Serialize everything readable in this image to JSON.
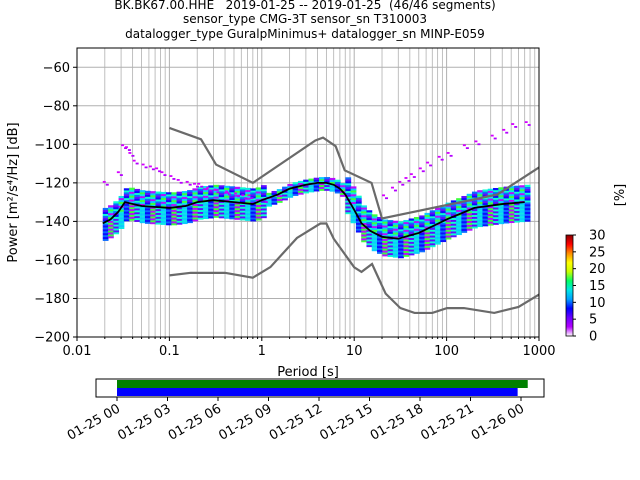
{
  "header": {
    "line1": "BK.BK67.00.HHE   2019-01-25 -- 2019-01-25  (46/46 segments)",
    "line2": "sensor_type CMG-3T sensor_sn T310003",
    "line3": "datalogger_type GuralpMinimus+ datalogger_sn MINP-E059"
  },
  "chart_data": [
    {
      "type": "heatmap",
      "xlabel": "Period [s]",
      "ylabel": "Power [m²/s⁴/Hz] [dB]",
      "xscale": "log",
      "xlim": [
        0.01,
        1000
      ],
      "ylim": [
        -200,
        -50
      ],
      "xticks": [
        0.01,
        0.1,
        1,
        10,
        100,
        1000
      ],
      "xtick_labels": [
        "0.01",
        "0.1",
        "1",
        "10",
        "100",
        "1000"
      ],
      "yticks": [
        -200,
        -180,
        -160,
        -140,
        -120,
        -100,
        -80,
        -60
      ],
      "ytick_labels": [
        "−200",
        "−180",
        "−160",
        "−140",
        "−120",
        "−100",
        "−80",
        "−60"
      ],
      "grid": true,
      "colorbar": {
        "label": "[%]",
        "range": [
          0,
          30
        ],
        "ticks": [
          "0",
          "5",
          "10",
          "15",
          "20",
          "25",
          "30"
        ],
        "colors": [
          "#ffffff",
          "#b400ff",
          "#6a00ff",
          "#0000ff",
          "#00a0ff",
          "#00e6e6",
          "#00ff66",
          "#c8ff00",
          "#ffff00",
          "#ff8c00",
          "#ff0000",
          "#8b0000"
        ]
      },
      "mean_curve": {
        "x": [
          0.019,
          0.023,
          0.028,
          0.033,
          0.05,
          0.1,
          0.15,
          0.2,
          0.3,
          0.5,
          0.8,
          1.0,
          1.5,
          2.0,
          3.0,
          4.0,
          5.0,
          6.0,
          7.0,
          8.0,
          10.0,
          12.0,
          15.0,
          20.0,
          30.0,
          50.0,
          100.0,
          200.0,
          400.0,
          700.0
        ],
        "y": [
          -141,
          -139,
          -135,
          -130,
          -132,
          -133,
          -132,
          -130,
          -129,
          -130,
          -131,
          -129,
          -126,
          -123,
          -121,
          -120,
          -120,
          -121,
          -123,
          -126,
          -134,
          -141,
          -145,
          -148,
          -149,
          -146,
          -139,
          -133,
          -131,
          -130
        ]
      },
      "noise_models": [
        {
          "x": [
            0.1,
            0.22,
            0.32,
            0.8,
            3.8,
            4.6,
            6.3,
            7.9,
            15.4,
            20,
            354.8,
            1000
          ],
          "y": [
            -91.5,
            -97.4,
            -110.5,
            -120,
            -98,
            -96.5,
            -101,
            -113.5,
            -120,
            -138.5,
            -126,
            -112
          ]
        },
        {
          "x": [
            0.1,
            0.17,
            0.4,
            0.8,
            1.24,
            2.4,
            4.3,
            5.0,
            6.0,
            10,
            12,
            15.6,
            21.9,
            31.6,
            45,
            70,
            101,
            154,
            328,
            600,
            1000
          ],
          "y": [
            -168,
            -166.7,
            -166.7,
            -169.2,
            -163.7,
            -148.6,
            -141.1,
            -141.1,
            -149,
            -163.8,
            -166.2,
            -162.1,
            -177.5,
            -185,
            -187.5,
            -187.5,
            -185,
            -185,
            -187.5,
            -184.4,
            -178
          ]
        }
      ],
      "upper_scatter": {
        "x": [
          0.019,
          0.027,
          0.03,
          0.033,
          0.036,
          0.04,
          0.05,
          0.06,
          0.07,
          0.08,
          0.1,
          0.12,
          0.15,
          0.18,
          0.2,
          0.25,
          0.3,
          0.4,
          0.5,
          0.6,
          0.7,
          1.0,
          20,
          25,
          30,
          35,
          40,
          50,
          60,
          80,
          100,
          150,
          200,
          300,
          400,
          500,
          700
        ],
        "y": [
          -119,
          -114,
          -100,
          -101,
          -104,
          -108,
          -110,
          -111,
          -112,
          -114,
          -116,
          -118,
          -119,
          -120,
          -120,
          -122,
          -123,
          -124,
          -125,
          -126,
          -126,
          -128,
          -126,
          -122,
          -119,
          -117,
          -115,
          -112,
          -109,
          -106,
          -104,
          -100,
          -98,
          -95,
          -92,
          -89,
          -88
        ]
      }
    },
    {
      "type": "timeline",
      "xtick_labels": [
        "01-25 00",
        "01-25 03",
        "01-25 06",
        "01-25 09",
        "01-25 12",
        "01-25 15",
        "01-25 18",
        "01-25 21",
        "01-26 00"
      ],
      "bars": [
        {
          "color": "#008000",
          "start_hour": 0,
          "end_hour": 24.4
        },
        {
          "color": "#0000ff",
          "start_hour": 0,
          "end_hour": 23.8
        }
      ]
    }
  ]
}
